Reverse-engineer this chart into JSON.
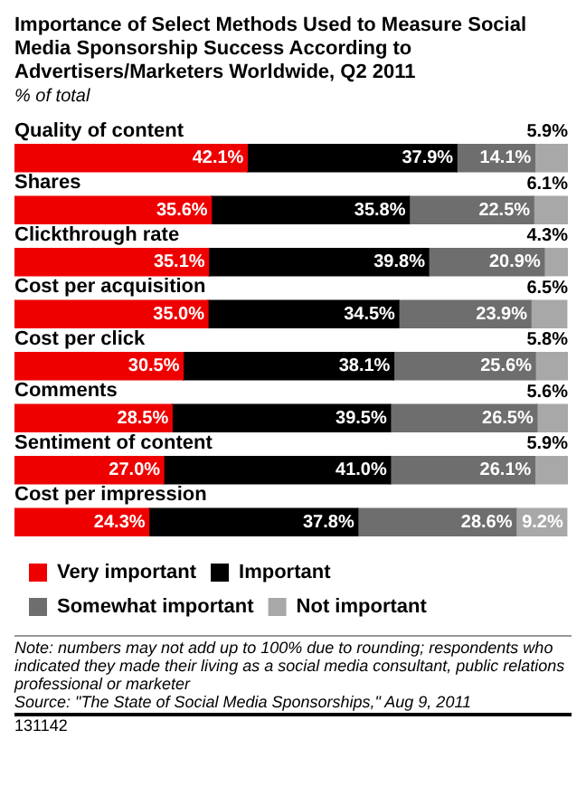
{
  "chart_data": {
    "type": "bar",
    "orientation": "horizontal",
    "stacked": true,
    "legend": "bottom",
    "title": "Importance of Select Methods Used to Measure Social Media Sponsorship Success According to Advertisers/Marketers Worldwide, Q2 2011",
    "subtitle": "% of total",
    "categories": [
      "Quality of content",
      "Shares",
      "Clickthrough rate",
      "Cost per acquisition",
      "Cost per click",
      "Comments",
      "Sentiment of content",
      "Cost per impression"
    ],
    "series": [
      {
        "name": "Very important",
        "color": "#ee0000",
        "values": [
          42.1,
          35.6,
          35.1,
          35.0,
          30.5,
          28.5,
          27.0,
          24.3
        ],
        "value_labels": [
          "42.1%",
          "35.6%",
          "35.1%",
          "35.0%",
          "30.5%",
          "28.5%",
          "27.0%",
          "24.3%"
        ]
      },
      {
        "name": "Important",
        "color": "#000000",
        "values": [
          37.9,
          35.8,
          39.8,
          34.5,
          38.1,
          39.5,
          41.0,
          37.8
        ],
        "value_labels": [
          "37.9%",
          "35.8%",
          "39.8%",
          "34.5%",
          "38.1%",
          "39.5%",
          "41.0%",
          "37.8%"
        ]
      },
      {
        "name": "Somewhat important",
        "color": "#6e6e6e",
        "values": [
          14.1,
          22.5,
          20.9,
          23.9,
          25.6,
          26.5,
          26.1,
          28.6
        ],
        "value_labels": [
          "14.1%",
          "22.5%",
          "20.9%",
          "23.9%",
          "25.6%",
          "26.5%",
          "26.1%",
          "28.6%"
        ]
      },
      {
        "name": "Not important",
        "color": "#a8a8a8",
        "values": [
          5.9,
          6.1,
          4.3,
          6.5,
          5.8,
          5.6,
          5.9,
          9.2
        ],
        "value_labels": [
          "5.9%",
          "6.1%",
          "4.3%",
          "6.5%",
          "5.8%",
          "5.6%",
          "5.9%",
          "9.2%"
        ]
      }
    ],
    "annotations": [
      "Note: numbers may not add up to 100% due to rounding; respondents who indicated they made their living as a social media consultant, public relations professional or marketer",
      "Source: \"The State of Social Media Sponsorships,\" Aug 9, 2011",
      "131142"
    ]
  }
}
